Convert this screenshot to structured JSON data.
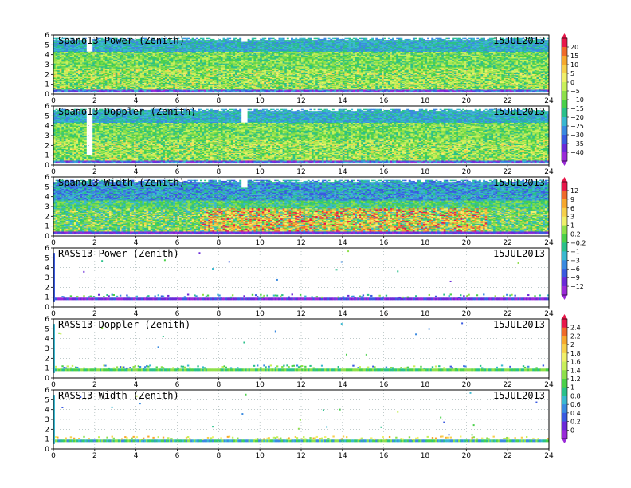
{
  "chart_data": [
    {
      "type": "heatmap",
      "title": "Spano13 Power (Zenith)",
      "date": "15JUL2013",
      "xlim": [
        0,
        24
      ],
      "ylim": [
        0,
        6
      ],
      "xticks": [
        0,
        2,
        4,
        6,
        8,
        10,
        12,
        14,
        16,
        18,
        20,
        22,
        24
      ],
      "yticks": [
        0,
        1,
        2,
        3,
        4,
        5,
        6
      ],
      "colorbar": "power",
      "pattern": "dense",
      "bias": 0.35,
      "gaps": [
        [
          1.6,
          1.8,
          4.2
        ],
        [
          9.1,
          9.3,
          5.2
        ],
        [
          0,
          24,
          5.6
        ]
      ],
      "grid": true
    },
    {
      "type": "heatmap",
      "title": "Spano13 Doppler (Zenith)",
      "date": "15JUL2013",
      "xlim": [
        0,
        24
      ],
      "ylim": [
        0,
        6
      ],
      "xticks": [
        0,
        2,
        4,
        6,
        8,
        10,
        12,
        14,
        16,
        18,
        20,
        22,
        24
      ],
      "yticks": [
        0,
        1,
        2,
        3,
        4,
        5,
        6
      ],
      "colorbar": "power",
      "pattern": "dense",
      "bias": 0.5,
      "gaps": [
        [
          1.6,
          1.8,
          1.0
        ],
        [
          9.1,
          9.3,
          4.2
        ]
      ],
      "grid": true
    },
    {
      "type": "heatmap",
      "title": "Spano13 Width (Zenith)",
      "date": "15JUL2013",
      "xlim": [
        0,
        24
      ],
      "ylim": [
        0,
        6
      ],
      "xticks": [
        0,
        2,
        4,
        6,
        8,
        10,
        12,
        14,
        16,
        18,
        20,
        22,
        24
      ],
      "yticks": [
        0,
        1,
        2,
        3,
        4,
        5,
        6
      ],
      "colorbar": "width",
      "pattern": "dense-width",
      "bias": 0.4,
      "gaps": [
        [
          9.1,
          9.3,
          4.8
        ],
        [
          0,
          24,
          5.6
        ]
      ],
      "grid": true
    },
    {
      "type": "heatmap",
      "title": "RASS13 Power (Zenith)",
      "date": "15JUL2013",
      "xlim": [
        0,
        24
      ],
      "ylim": [
        0,
        6
      ],
      "xticks": [
        0,
        2,
        4,
        6,
        8,
        10,
        12,
        14,
        16,
        18,
        20,
        22,
        24
      ],
      "yticks": [
        0,
        1,
        2,
        3,
        4,
        5,
        6
      ],
      "colorbar": "rass",
      "pattern": "rass-power",
      "grid": true
    },
    {
      "type": "heatmap",
      "title": "RASS13 Doppler (Zenith)",
      "date": "15JUL2013",
      "xlim": [
        0,
        24
      ],
      "ylim": [
        0,
        6
      ],
      "xticks": [
        0,
        2,
        4,
        6,
        8,
        10,
        12,
        14,
        16,
        18,
        20,
        22,
        24
      ],
      "yticks": [
        0,
        1,
        2,
        3,
        4,
        5,
        6
      ],
      "colorbar": "doppler",
      "pattern": "rass-doppler",
      "grid": true
    },
    {
      "type": "heatmap",
      "title": "RASS13 Width (Zenith)",
      "date": "15JUL2013",
      "xlim": [
        0,
        24
      ],
      "ylim": [
        0,
        6
      ],
      "xticks": [
        0,
        2,
        4,
        6,
        8,
        10,
        12,
        14,
        16,
        18,
        20,
        22,
        24
      ],
      "yticks": [
        0,
        1,
        2,
        3,
        4,
        5,
        6
      ],
      "colorbar": "doppler",
      "pattern": "rass-width",
      "grid": true
    }
  ],
  "colorbars": {
    "power": {
      "labels": [
        "20",
        "15",
        "10",
        "5",
        "0",
        "−5",
        "−10",
        "−15",
        "−20",
        "−25",
        "−30",
        "−35",
        "−40"
      ],
      "colors": [
        "#e8184a",
        "#f06a2a",
        "#f7a82d",
        "#f7d04a",
        "#f0f06a",
        "#c8f05a",
        "#8ee04a",
        "#4ad04a",
        "#2ac08a",
        "#3ab8d0",
        "#3a8ae0",
        "#3a5ae0",
        "#6a2ad8",
        "#9a2ad8"
      ]
    },
    "width": {
      "labels": [
        "12",
        "9",
        "6",
        "3",
        "1",
        "0.2",
        "−0.2",
        "−1",
        "−3",
        "−6",
        "−9",
        "−12"
      ],
      "colors": [
        "#e8184a",
        "#f06a2a",
        "#f7a82d",
        "#f7d04a",
        "#f0f06a",
        "#8ee04a",
        "#4ad04a",
        "#2ac08a",
        "#3ab8d0",
        "#3a8ae0",
        "#3a5ae0",
        "#6a2ad8",
        "#9a2ad8"
      ]
    },
    "rass": {
      "labels": [
        "12",
        "9",
        "6",
        "3",
        "1",
        "0.2",
        "−0.2",
        "−1",
        "−3",
        "−6",
        "−9",
        "−12"
      ],
      "colors": [
        "#e8184a",
        "#f06a2a",
        "#f7a82d",
        "#f7d04a",
        "#f0f06a",
        "#8ee04a",
        "#4ad04a",
        "#2ac08a",
        "#3ab8d0",
        "#3a8ae0",
        "#3a5ae0",
        "#6a2ad8",
        "#9a2ad8"
      ]
    },
    "doppler": {
      "labels": [
        "2.4",
        "2.2",
        "2",
        "1.8",
        "1.6",
        "1.4",
        "1.2",
        "1",
        "0.8",
        "0.6",
        "0.4",
        "0.2",
        "0"
      ],
      "colors": [
        "#e8184a",
        "#f06a2a",
        "#f7a82d",
        "#f7d04a",
        "#f0f06a",
        "#c8f05a",
        "#8ee04a",
        "#4ad04a",
        "#2ac08a",
        "#3ab8d0",
        "#3a8ae0",
        "#3a5ae0",
        "#6a2ad8",
        "#9a2ad8"
      ]
    }
  }
}
